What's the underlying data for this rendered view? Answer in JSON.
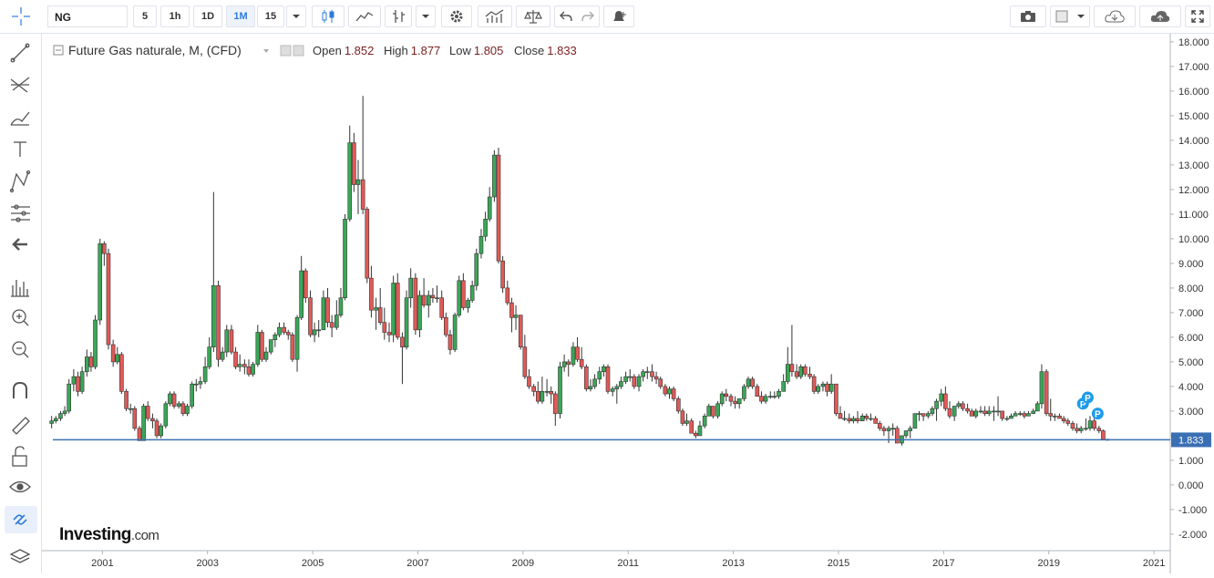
{
  "toolbar": {
    "symbol": "NG",
    "intervals": [
      "5",
      "1h",
      "1D",
      "1M",
      "15"
    ],
    "active_interval": 3
  },
  "chart_data": {
    "type": "candlestick",
    "title": "Future Gas naturale, M, (CFD)",
    "ohlc": [
      {
        "label": "Open",
        "value": 1.852
      },
      {
        "label": "High",
        "value": 1.877
      },
      {
        "label": "Low",
        "value": 1.805
      },
      {
        "label": "Close",
        "value": 1.833
      }
    ],
    "up_color": "#3aa757",
    "down_color": "#e05a57",
    "line_color": "#3a6fb3",
    "grid": false,
    "brand": {
      "name": "Investing",
      "suffix": ".com"
    },
    "markers": [
      {
        "text": "P",
        "x": 2019.65,
        "y": 3.3
      },
      {
        "text": "P",
        "x": 2019.74,
        "y": 3.55
      },
      {
        "text": "P",
        "x": 2019.93,
        "y": 2.9
      }
    ],
    "xlim": [
      1999.85,
      2021.31
    ],
    "xticks": [
      2001,
      2003,
      2005,
      2007,
      2009,
      2011,
      2013,
      2015,
      2017,
      2019,
      2021
    ],
    "ylim": [
      -2.67,
      18.33
    ],
    "yticks": [
      {
        "value": -2,
        "label": "-2.000"
      },
      {
        "value": -1,
        "label": "-1.000"
      },
      {
        "value": 0,
        "label": "0.000"
      },
      {
        "value": 1,
        "label": "1.000"
      },
      {
        "value": 2,
        "label": "2.000"
      },
      {
        "value": 3,
        "label": "3.000"
      },
      {
        "value": 4,
        "label": "4.000"
      },
      {
        "value": 5,
        "label": "5.000"
      },
      {
        "value": 6,
        "label": "6.000"
      },
      {
        "value": 7,
        "label": "7.000"
      },
      {
        "value": 8,
        "label": "8.000"
      },
      {
        "value": 9,
        "label": "9.000"
      },
      {
        "value": 10,
        "label": "10.000"
      },
      {
        "value": 11,
        "label": "11.000"
      },
      {
        "value": 12,
        "label": "12.000"
      },
      {
        "value": 13,
        "label": "13.000"
      },
      {
        "value": 14,
        "label": "14.000"
      },
      {
        "value": 15,
        "label": "15.000"
      },
      {
        "value": 16,
        "label": "16.000"
      },
      {
        "value": 17,
        "label": "17.000"
      },
      {
        "value": 18,
        "label": "18.000"
      }
    ],
    "x": [
      2000,
      2000.08,
      2000.17,
      2000.25,
      2000.33,
      2000.42,
      2000.5,
      2000.58,
      2000.67,
      2000.75,
      2000.83,
      2000.92,
      2001,
      2001.08,
      2001.17,
      2001.25,
      2001.33,
      2001.42,
      2001.5,
      2001.58,
      2001.67,
      2001.75,
      2001.83,
      2001.92,
      2002,
      2002.08,
      2002.17,
      2002.25,
      2002.33,
      2002.42,
      2002.5,
      2002.58,
      2002.67,
      2002.75,
      2002.83,
      2002.92,
      2003,
      2003.08,
      2003.17,
      2003.25,
      2003.33,
      2003.42,
      2003.5,
      2003.58,
      2003.67,
      2003.75,
      2003.83,
      2003.92,
      2004,
      2004.08,
      2004.17,
      2004.25,
      2004.33,
      2004.42,
      2004.5,
      2004.58,
      2004.67,
      2004.75,
      2004.83,
      2004.92,
      2005,
      2005.08,
      2005.17,
      2005.25,
      2005.33,
      2005.42,
      2005.5,
      2005.58,
      2005.67,
      2005.75,
      2005.83,
      2005.92,
      2006,
      2006.08,
      2006.17,
      2006.25,
      2006.33,
      2006.42,
      2006.5,
      2006.58,
      2006.67,
      2006.75,
      2006.83,
      2006.92,
      2007,
      2007.08,
      2007.17,
      2007.25,
      2007.33,
      2007.42,
      2007.5,
      2007.58,
      2007.67,
      2007.75,
      2007.83,
      2007.92,
      2008,
      2008.08,
      2008.17,
      2008.25,
      2008.33,
      2008.42,
      2008.5,
      2008.58,
      2008.67,
      2008.75,
      2008.83,
      2008.92,
      2009,
      2009.08,
      2009.17,
      2009.25,
      2009.33,
      2009.42,
      2009.5,
      2009.58,
      2009.67,
      2009.75,
      2009.83,
      2009.92,
      2010,
      2010.08,
      2010.17,
      2010.25,
      2010.33,
      2010.42,
      2010.5,
      2010.58,
      2010.67,
      2010.75,
      2010.83,
      2010.92,
      2011,
      2011.08,
      2011.17,
      2011.25,
      2011.33,
      2011.42,
      2011.5,
      2011.58,
      2011.67,
      2011.75,
      2011.83,
      2011.92,
      2012,
      2012.08,
      2012.17,
      2012.25,
      2012.33,
      2012.42,
      2012.5,
      2012.58,
      2012.67,
      2012.75,
      2012.83,
      2012.92,
      2013,
      2013.08,
      2013.17,
      2013.25,
      2013.33,
      2013.42,
      2013.5,
      2013.58,
      2013.67,
      2013.75,
      2013.83,
      2013.92,
      2014,
      2014.08,
      2014.17,
      2014.25,
      2014.33,
      2014.42,
      2014.5,
      2014.58,
      2014.67,
      2014.75,
      2014.83,
      2014.92,
      2015,
      2015.08,
      2015.17,
      2015.25,
      2015.33,
      2015.42,
      2015.5,
      2015.58,
      2015.67,
      2015.75,
      2015.83,
      2015.92,
      2016,
      2016.08,
      2016.17,
      2016.25,
      2016.33,
      2016.42,
      2016.5,
      2016.58,
      2016.67,
      2016.75,
      2016.83,
      2016.92,
      2017,
      2017.08,
      2017.17,
      2017.25,
      2017.33,
      2017.42,
      2017.5,
      2017.58,
      2017.67,
      2017.75,
      2017.83,
      2017.92,
      2018,
      2018.08,
      2018.17,
      2018.25,
      2018.33,
      2018.42,
      2018.5,
      2018.58,
      2018.67,
      2018.75,
      2018.83,
      2018.92,
      2019,
      2019.08,
      2019.17,
      2019.25,
      2019.33,
      2019.42,
      2019.5,
      2019.58,
      2019.67,
      2019.75,
      2019.83,
      2019.92,
      2020,
      2020.08
    ],
    "open": [
      2.5,
      2.6,
      2.7,
      2.9,
      3.0,
      4.1,
      4.4,
      3.8,
      4.6,
      5.2,
      4.8,
      6.7,
      9.8,
      9.4,
      5.7,
      5.0,
      5.3,
      3.8,
      3.1,
      3.1,
      2.3,
      1.8,
      3.2,
      2.7,
      2.6,
      2.0,
      2.4,
      3.3,
      3.7,
      3.2,
      3.3,
      2.9,
      3.2,
      4.1,
      4.1,
      4.2,
      4.8,
      5.6,
      8.1,
      5.1,
      5.4,
      6.3,
      5.4,
      4.8,
      4.9,
      4.8,
      4.5,
      4.9,
      6.2,
      5.1,
      5.4,
      5.9,
      6.1,
      6.4,
      6.2,
      6.1,
      5.1,
      6.8,
      8.7,
      7.6,
      6.1,
      6.3,
      6.3,
      7.6,
      6.6,
      6.4,
      6.9,
      7.6,
      10.8,
      13.9,
      12.2,
      12.4,
      11.2,
      8.4,
      7.1,
      7.2,
      6.6,
      6.2,
      6.1,
      8.2,
      6.0,
      5.6,
      7.6,
      8.4,
      6.3,
      7.7,
      7.3,
      7.7,
      7.6,
      7.6,
      6.8,
      6.1,
      5.5,
      6.9,
      8.3,
      7.2,
      7.5,
      8.1,
      9.4,
      10.1,
      10.8,
      11.7,
      13.4,
      9.1,
      8.0,
      7.4,
      6.8,
      6.9,
      5.6,
      4.4,
      4.0,
      3.8,
      3.4,
      3.8,
      3.8,
      3.7,
      2.9,
      4.8,
      5.0,
      4.9,
      5.6,
      5.1,
      4.8,
      3.9,
      4.0,
      4.3,
      4.6,
      4.8,
      3.8,
      3.9,
      4.0,
      4.2,
      4.4,
      4.4,
      4.0,
      4.4,
      4.6,
      4.6,
      4.4,
      4.3,
      4.0,
      3.7,
      3.9,
      3.5,
      3.0,
      2.5,
      2.6,
      2.1,
      2.0,
      2.4,
      2.8,
      3.2,
      2.8,
      3.3,
      3.7,
      3.6,
      3.4,
      3.3,
      3.5,
      4.0,
      4.3,
      4.0,
      3.6,
      3.4,
      3.6,
      3.6,
      3.6,
      3.8,
      4.2,
      4.9,
      4.6,
      4.4,
      4.8,
      4.5,
      4.4,
      3.8,
      4.0,
      4.1,
      3.8,
      4.1,
      2.9,
      2.7,
      2.7,
      2.6,
      2.7,
      2.6,
      2.8,
      2.7,
      2.7,
      2.5,
      2.3,
      2.2,
      2.3,
      2.3,
      1.7,
      2.0,
      2.2,
      2.3,
      2.9,
      2.9,
      2.8,
      2.9,
      3.1,
      3.4,
      3.7,
      3.1,
      2.8,
      3.2,
      3.3,
      3.1,
      3.0,
      2.8,
      3.0,
      3.0,
      2.9,
      3.0,
      3.0,
      3.0,
      2.7,
      2.7,
      2.8,
      2.9,
      2.9,
      2.8,
      2.9,
      3.0,
      3.3,
      4.6,
      2.9,
      2.8,
      2.8,
      2.7,
      2.6,
      2.5,
      2.3,
      2.2,
      2.3,
      2.3,
      2.6,
      2.3,
      2.2,
      1.852
    ],
    "high": [
      2.8,
      2.8,
      3.0,
      3.2,
      4.3,
      4.7,
      4.6,
      4.8,
      5.5,
      5.4,
      6.9,
      10.0,
      9.9,
      9.6,
      5.9,
      5.6,
      5.4,
      3.9,
      3.3,
      3.2,
      2.4,
      3.3,
      3.4,
      2.9,
      2.7,
      2.5,
      3.4,
      3.8,
      3.8,
      3.4,
      3.4,
      3.3,
      4.2,
      4.3,
      4.4,
      5.2,
      6.0,
      11.9,
      8.3,
      5.6,
      6.5,
      6.5,
      5.6,
      5.3,
      5.1,
      5.1,
      5.0,
      6.5,
      6.3,
      5.6,
      5.9,
      6.2,
      6.6,
      6.6,
      6.3,
      6.2,
      6.9,
      9.3,
      8.8,
      7.9,
      6.6,
      6.7,
      7.9,
      8.0,
      6.9,
      7.5,
      8.0,
      11.0,
      14.6,
      14.3,
      13.2,
      15.8,
      11.3,
      8.9,
      7.6,
      8.0,
      7.2,
      6.6,
      8.5,
      8.6,
      6.2,
      7.9,
      8.8,
      8.6,
      7.9,
      8.4,
      7.9,
      8.0,
      8.1,
      7.9,
      7.0,
      6.3,
      7.0,
      8.5,
      8.6,
      7.6,
      8.3,
      9.6,
      10.4,
      11.1,
      12.1,
      13.6,
      13.7,
      9.3,
      8.3,
      7.6,
      7.3,
      6.9,
      6.1,
      4.7,
      4.1,
      4.2,
      4.4,
      4.3,
      4.0,
      3.8,
      5.0,
      5.3,
      5.1,
      5.8,
      6.0,
      5.6,
      4.9,
      4.3,
      4.5,
      4.8,
      4.9,
      4.9,
      4.0,
      4.1,
      4.4,
      4.6,
      4.7,
      4.5,
      4.5,
      4.7,
      4.8,
      4.9,
      4.6,
      4.4,
      4.1,
      4.0,
      4.0,
      3.6,
      3.1,
      2.9,
      2.7,
      2.2,
      2.6,
      2.9,
      3.3,
      3.2,
      3.4,
      3.8,
      3.9,
      3.7,
      3.6,
      3.5,
      4.1,
      4.4,
      4.4,
      4.1,
      3.8,
      3.7,
      3.8,
      3.8,
      3.9,
      4.5,
      5.6,
      6.5,
      4.9,
      4.9,
      4.9,
      4.8,
      4.5,
      4.1,
      4.2,
      4.2,
      4.5,
      4.1,
      3.2,
      3.0,
      2.9,
      2.8,
      3.0,
      2.9,
      2.9,
      2.9,
      2.8,
      2.6,
      2.4,
      2.4,
      2.5,
      2.4,
      2.0,
      2.2,
      2.4,
      2.9,
      3.0,
      2.9,
      3.0,
      3.2,
      3.5,
      3.9,
      4.0,
      3.4,
      3.2,
      3.4,
      3.4,
      3.3,
      3.1,
      3.1,
      3.2,
      3.2,
      3.2,
      3.2,
      3.6,
      3.0,
      2.8,
      2.9,
      3.0,
      3.0,
      3.0,
      3.0,
      3.1,
      3.4,
      4.9,
      4.7,
      3.5,
      2.9,
      2.9,
      2.8,
      2.7,
      2.6,
      2.5,
      2.4,
      2.7,
      2.8,
      2.8,
      2.4,
      2.25,
      1.877
    ],
    "low": [
      2.3,
      2.5,
      2.6,
      2.8,
      2.9,
      3.8,
      3.6,
      3.7,
      4.4,
      4.6,
      4.7,
      6.5,
      8.9,
      5.5,
      4.8,
      4.9,
      3.7,
      3.0,
      2.9,
      2.2,
      1.8,
      1.8,
      2.6,
      2.3,
      1.9,
      1.9,
      2.3,
      3.2,
      3.1,
      3.1,
      2.8,
      2.8,
      3.1,
      3.8,
      3.9,
      4.1,
      4.7,
      5.4,
      4.8,
      5.0,
      5.2,
      5.3,
      4.7,
      4.6,
      4.5,
      4.4,
      4.4,
      4.8,
      5.0,
      5.0,
      5.3,
      5.6,
      6.0,
      6.1,
      5.9,
      5.0,
      4.6,
      6.7,
      7.4,
      6.0,
      5.8,
      6.0,
      6.3,
      6.4,
      6.0,
      6.3,
      6.8,
      7.5,
      10.7,
      11.9,
      11.0,
      11.0,
      8.2,
      6.8,
      6.3,
      6.5,
      5.9,
      5.8,
      5.8,
      5.9,
      4.1,
      5.5,
      7.2,
      6.1,
      6.0,
      7.2,
      6.8,
      7.4,
      7.4,
      6.7,
      6.0,
      5.3,
      5.4,
      6.8,
      7.1,
      7.0,
      7.4,
      7.9,
      9.2,
      9.9,
      10.7,
      11.5,
      9.0,
      7.8,
      7.3,
      6.2,
      6.3,
      5.5,
      4.3,
      3.9,
      3.6,
      3.3,
      3.3,
      3.6,
      3.3,
      2.4,
      2.7,
      4.6,
      4.4,
      4.8,
      5.0,
      4.7,
      3.8,
      3.8,
      3.9,
      4.1,
      4.4,
      3.7,
      3.6,
      3.3,
      3.9,
      4.1,
      4.2,
      3.9,
      3.8,
      4.2,
      4.3,
      4.2,
      4.1,
      3.9,
      3.6,
      3.5,
      3.4,
      2.9,
      2.4,
      2.4,
      2.1,
      1.9,
      2.0,
      2.3,
      2.8,
      2.7,
      2.7,
      3.2,
      3.4,
      3.2,
      3.1,
      3.1,
      3.4,
      3.9,
      3.9,
      3.6,
      3.3,
      3.3,
      3.5,
      3.5,
      3.5,
      3.8,
      4.1,
      4.4,
      4.3,
      4.3,
      4.4,
      4.3,
      3.7,
      3.7,
      3.8,
      3.6,
      3.7,
      2.8,
      2.7,
      2.6,
      2.5,
      2.5,
      2.5,
      2.6,
      2.6,
      2.6,
      2.5,
      2.2,
      2.0,
      1.7,
      2.0,
      1.7,
      1.6,
      1.9,
      1.9,
      2.3,
      2.6,
      2.6,
      2.7,
      2.8,
      2.6,
      3.2,
      3.0,
      2.7,
      2.6,
      3.1,
      3.0,
      2.9,
      2.8,
      2.7,
      2.9,
      2.8,
      2.8,
      2.6,
      2.8,
      2.6,
      2.6,
      2.7,
      2.8,
      2.8,
      2.7,
      2.8,
      2.9,
      3.0,
      3.1,
      2.8,
      2.6,
      2.6,
      2.7,
      2.5,
      2.4,
      2.2,
      2.1,
      2.1,
      2.2,
      2.2,
      2.2,
      2.1,
      1.85,
      1.805
    ],
    "close": [
      2.6,
      2.7,
      2.9,
      3.0,
      4.1,
      4.4,
      3.8,
      4.6,
      5.2,
      4.8,
      6.7,
      9.8,
      9.4,
      5.7,
      5.0,
      5.3,
      3.8,
      3.1,
      3.1,
      2.3,
      1.8,
      3.2,
      2.7,
      2.6,
      2.0,
      2.4,
      3.3,
      3.7,
      3.2,
      3.3,
      2.9,
      3.2,
      4.1,
      4.1,
      4.2,
      4.8,
      5.6,
      8.1,
      5.1,
      5.4,
      6.3,
      5.4,
      4.8,
      4.9,
      4.8,
      4.5,
      4.9,
      6.2,
      5.1,
      5.4,
      5.9,
      6.1,
      6.4,
      6.2,
      6.1,
      5.1,
      6.8,
      8.7,
      7.6,
      6.1,
      6.3,
      6.3,
      7.6,
      6.6,
      6.4,
      6.9,
      7.6,
      10.8,
      13.9,
      12.2,
      12.4,
      11.2,
      8.4,
      7.1,
      7.2,
      6.6,
      6.2,
      6.1,
      8.2,
      6.0,
      5.6,
      7.6,
      8.4,
      6.3,
      7.7,
      7.3,
      7.7,
      7.6,
      7.6,
      6.8,
      6.1,
      5.5,
      6.9,
      8.3,
      7.2,
      7.5,
      8.1,
      9.4,
      10.1,
      10.8,
      11.7,
      13.4,
      9.1,
      8.0,
      7.4,
      6.8,
      6.9,
      5.6,
      4.4,
      4.0,
      3.8,
      3.4,
      3.8,
      3.8,
      3.7,
      2.9,
      4.8,
      5.0,
      4.9,
      5.6,
      5.1,
      4.8,
      3.9,
      4.0,
      4.3,
      4.6,
      4.8,
      3.8,
      3.9,
      4.0,
      4.2,
      4.4,
      4.4,
      4.0,
      4.4,
      4.6,
      4.6,
      4.4,
      4.3,
      4.0,
      3.7,
      3.9,
      3.5,
      3.0,
      2.5,
      2.6,
      2.1,
      2.0,
      2.4,
      2.8,
      3.2,
      2.8,
      3.3,
      3.7,
      3.6,
      3.4,
      3.3,
      3.5,
      4.0,
      4.3,
      4.0,
      3.6,
      3.4,
      3.6,
      3.6,
      3.6,
      3.8,
      4.2,
      4.9,
      4.6,
      4.4,
      4.8,
      4.5,
      4.4,
      3.8,
      4.0,
      4.1,
      3.8,
      4.1,
      2.9,
      2.7,
      2.7,
      2.6,
      2.7,
      2.6,
      2.8,
      2.7,
      2.7,
      2.5,
      2.3,
      2.2,
      2.3,
      2.3,
      1.7,
      2.0,
      2.2,
      2.3,
      2.9,
      2.9,
      2.8,
      2.9,
      3.1,
      3.4,
      3.7,
      3.1,
      2.8,
      3.2,
      3.3,
      3.1,
      3.0,
      2.8,
      3.0,
      3.0,
      2.9,
      3.0,
      3.0,
      3.0,
      2.7,
      2.7,
      2.8,
      2.9,
      2.9,
      2.8,
      2.9,
      3.0,
      3.3,
      4.6,
      2.9,
      2.8,
      2.8,
      2.7,
      2.6,
      2.5,
      2.3,
      2.2,
      2.3,
      2.3,
      2.6,
      2.3,
      2.2,
      1.85,
      1.833
    ]
  }
}
